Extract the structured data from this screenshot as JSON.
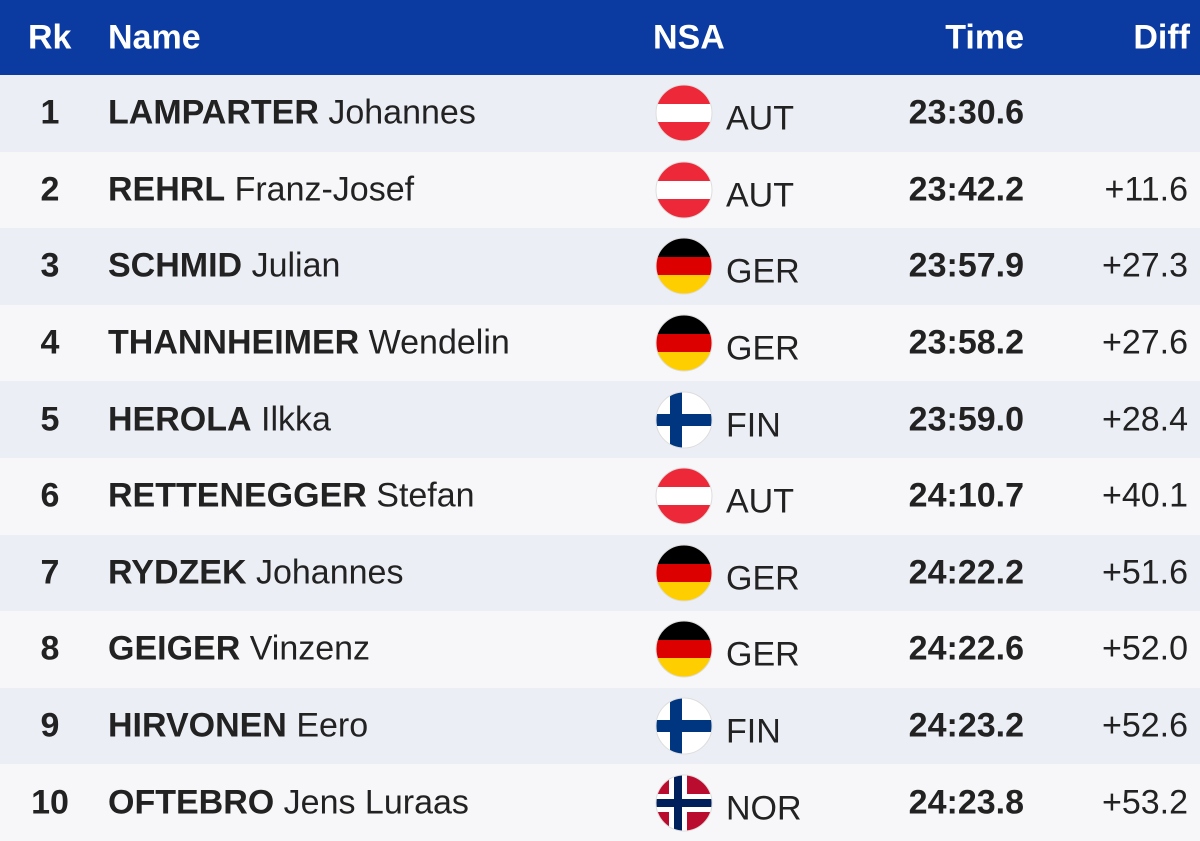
{
  "table": {
    "header": {
      "rank": "Rk",
      "name": "Name",
      "nsa": "NSA",
      "time": "Time",
      "diff": "Diff"
    },
    "rows": [
      {
        "rank": "1",
        "surname": "LAMPARTER",
        "given": "Johannes",
        "nsa": "AUT",
        "time": "23:30.6"
      },
      {
        "rank": "2",
        "surname": "REHRL",
        "given": "Franz-Josef",
        "nsa": "AUT",
        "time": "23:42.2",
        "diff": "+11.6"
      },
      {
        "rank": "3",
        "surname": "SCHMID",
        "given": "Julian",
        "nsa": "GER",
        "time": "23:57.9",
        "diff": "+27.3"
      },
      {
        "rank": "4",
        "surname": "THANNHEIMER",
        "given": "Wendelin",
        "nsa": "GER",
        "time": "23:58.2",
        "diff": "+27.6"
      },
      {
        "rank": "5",
        "surname": "HEROLA",
        "given": "Ilkka",
        "nsa": "FIN",
        "time": "23:59.0",
        "diff": "+28.4"
      },
      {
        "rank": "6",
        "surname": "RETTENEGGER",
        "given": "Stefan",
        "nsa": "AUT",
        "time": "24:10.7",
        "diff": "+40.1"
      },
      {
        "rank": "7",
        "surname": "RYDZEK",
        "given": "Johannes",
        "nsa": "GER",
        "time": "24:22.2",
        "diff": "+51.6"
      },
      {
        "rank": "8",
        "surname": "GEIGER",
        "given": "Vinzenz",
        "nsa": "GER",
        "time": "24:22.6",
        "diff": "+52.0"
      },
      {
        "rank": "9",
        "surname": "HIRVONEN",
        "given": "Eero",
        "nsa": "FIN",
        "time": "24:23.2",
        "diff": "+52.6"
      },
      {
        "rank": "10",
        "surname": "OFTEBRO",
        "given": "Jens Luraas",
        "nsa": "NOR",
        "time": "24:23.8",
        "diff": "+53.2"
      }
    ]
  }
}
